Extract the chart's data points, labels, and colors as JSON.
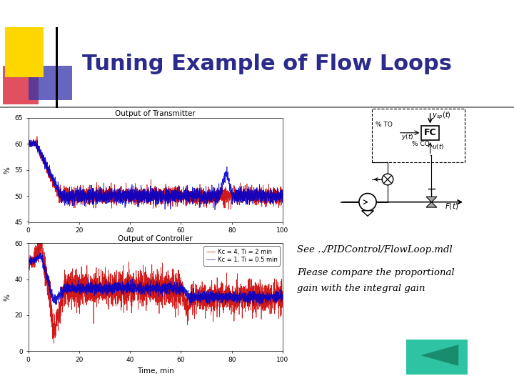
{
  "title": "Tuning Example of Flow Loops",
  "title_color": "#2B2B8B",
  "title_fontsize": 22,
  "background_color": "#ffffff",
  "see_text": "See ../PIDControl/FlowLoop.mdl",
  "compare_text1": "Please compare the proportional",
  "compare_text2": "gain with the integral gain",
  "legend_line1": "Kc = 4, Ti = 2 min",
  "legend_line2": "Kc = 1, Ti = 0.5 min",
  "red_color": "#cc0000",
  "blue_color": "#0000cc",
  "teal_color": "#2ec4a3",
  "yellow_color": "#FFD700",
  "pinkred_color": "#e05060",
  "navyblue_color": "#3333aa",
  "top_plot_title": "Output of Transmitter",
  "bottom_plot_title": "Output of Controller",
  "xlabel": "Time, min",
  "ylabel": "%"
}
